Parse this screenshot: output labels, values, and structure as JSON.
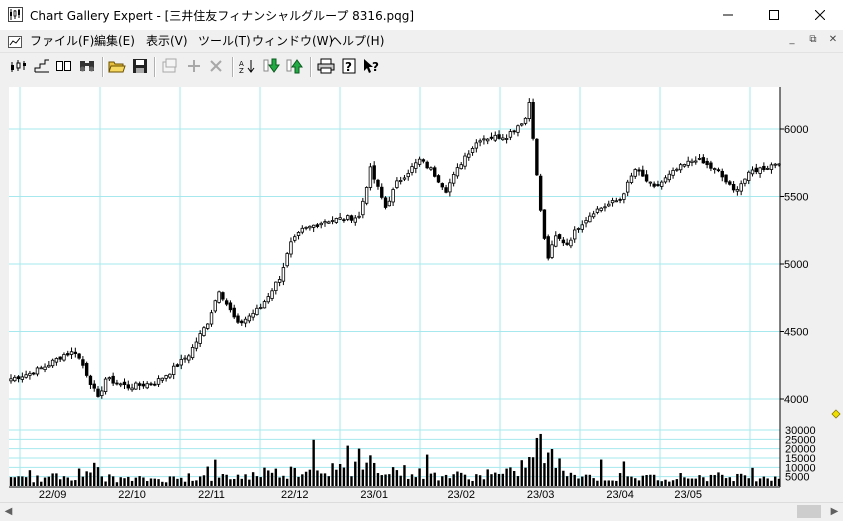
{
  "window": {
    "title": "Chart Gallery Expert - [三井住友フィナンシャルグループ 8316.pqg]",
    "buttons": [
      "minimize",
      "maximize",
      "close"
    ]
  },
  "menu": {
    "items": [
      {
        "label": "ファイル(F)"
      },
      {
        "label": "編集(E)"
      },
      {
        "label": "表示(V)"
      },
      {
        "label": "ツール(T)"
      },
      {
        "label": "ウィンドウ(W)"
      },
      {
        "label": "ヘルプ(H)"
      }
    ],
    "mdi_buttons": [
      "_",
      "⧉",
      "✕"
    ]
  },
  "toolbar": {
    "buttons": [
      {
        "icon": "candlestick-icon"
      },
      {
        "icon": "step-chart-icon"
      },
      {
        "icon": "split-view-icon"
      },
      {
        "icon": "binoculars-icon"
      },
      {
        "icon": "open-folder-icon"
      },
      {
        "icon": "save-disk-icon"
      },
      {
        "icon": "properties-icon",
        "disabled": true
      },
      {
        "icon": "add-icon",
        "disabled": true
      },
      {
        "icon": "delete-icon",
        "disabled": true
      },
      {
        "icon": "sort-icon"
      },
      {
        "icon": "down-arrow-icon"
      },
      {
        "icon": "up-arrow-icon"
      },
      {
        "icon": "print-icon"
      },
      {
        "icon": "help-icon"
      },
      {
        "icon": "context-help-icon"
      }
    ]
  },
  "chart_data": {
    "type": "candlestick",
    "price_axis": {
      "ticks": [
        4000,
        4500,
        5000,
        5500,
        6000
      ],
      "range": [
        3900,
        6300
      ]
    },
    "volume_axis": {
      "ticks": [
        5000,
        10000,
        15000,
        20000,
        25000,
        30000
      ],
      "range": [
        0,
        33000
      ]
    },
    "x_labels": [
      "22/09",
      "22/10",
      "22/11",
      "22/12",
      "23/01",
      "23/02",
      "23/03",
      "23/04",
      "23/05"
    ],
    "x_label_day_index": [
      11,
      32,
      53,
      75,
      96,
      119,
      140,
      161,
      179
    ],
    "grid": true,
    "colors": {
      "grid": "#a6e8ee",
      "candle": "#000000",
      "marker": "#f0e000"
    },
    "price_anchors": [
      [
        0,
        4150
      ],
      [
        5,
        4190
      ],
      [
        9,
        4240
      ],
      [
        14,
        4330
      ],
      [
        17,
        4350
      ],
      [
        19,
        4250
      ],
      [
        23,
        4000
      ],
      [
        25,
        4150
      ],
      [
        31,
        4090
      ],
      [
        38,
        4120
      ],
      [
        42,
        4200
      ],
      [
        47,
        4330
      ],
      [
        52,
        4570
      ],
      [
        55,
        4810
      ],
      [
        60,
        4550
      ],
      [
        66,
        4680
      ],
      [
        71,
        4900
      ],
      [
        74,
        5150
      ],
      [
        77,
        5250
      ],
      [
        83,
        5320
      ],
      [
        92,
        5350
      ],
      [
        95,
        5700
      ],
      [
        99,
        5420
      ],
      [
        102,
        5600
      ],
      [
        108,
        5770
      ],
      [
        111,
        5700
      ],
      [
        115,
        5550
      ],
      [
        120,
        5800
      ],
      [
        124,
        5930
      ],
      [
        131,
        5950
      ],
      [
        136,
        6080
      ],
      [
        137,
        6200
      ],
      [
        138,
        5950
      ],
      [
        139,
        5650
      ],
      [
        140,
        5400
      ],
      [
        141,
        5180
      ],
      [
        142,
        5050
      ],
      [
        144,
        5200
      ],
      [
        147,
        5150
      ],
      [
        150,
        5280
      ],
      [
        154,
        5390
      ],
      [
        161,
        5480
      ],
      [
        165,
        5700
      ],
      [
        170,
        5560
      ],
      [
        176,
        5700
      ],
      [
        181,
        5780
      ],
      [
        187,
        5680
      ],
      [
        191,
        5540
      ],
      [
        196,
        5690
      ],
      [
        200,
        5720
      ],
      [
        203,
        5760
      ]
    ],
    "volume_anchors": [
      [
        0,
        3500
      ],
      [
        8,
        4000
      ],
      [
        18,
        6000
      ],
      [
        30,
        3500
      ],
      [
        45,
        4000
      ],
      [
        60,
        5000
      ],
      [
        75,
        8000
      ],
      [
        80,
        11000
      ],
      [
        90,
        7000
      ],
      [
        95,
        13000
      ],
      [
        100,
        9000
      ],
      [
        110,
        6000
      ],
      [
        125,
        5000
      ],
      [
        133,
        7000
      ],
      [
        137,
        14000
      ],
      [
        140,
        22000
      ],
      [
        143,
        14000
      ],
      [
        148,
        6000
      ],
      [
        160,
        4000
      ],
      [
        180,
        5000
      ],
      [
        195,
        5000
      ],
      [
        203,
        5000
      ]
    ]
  }
}
